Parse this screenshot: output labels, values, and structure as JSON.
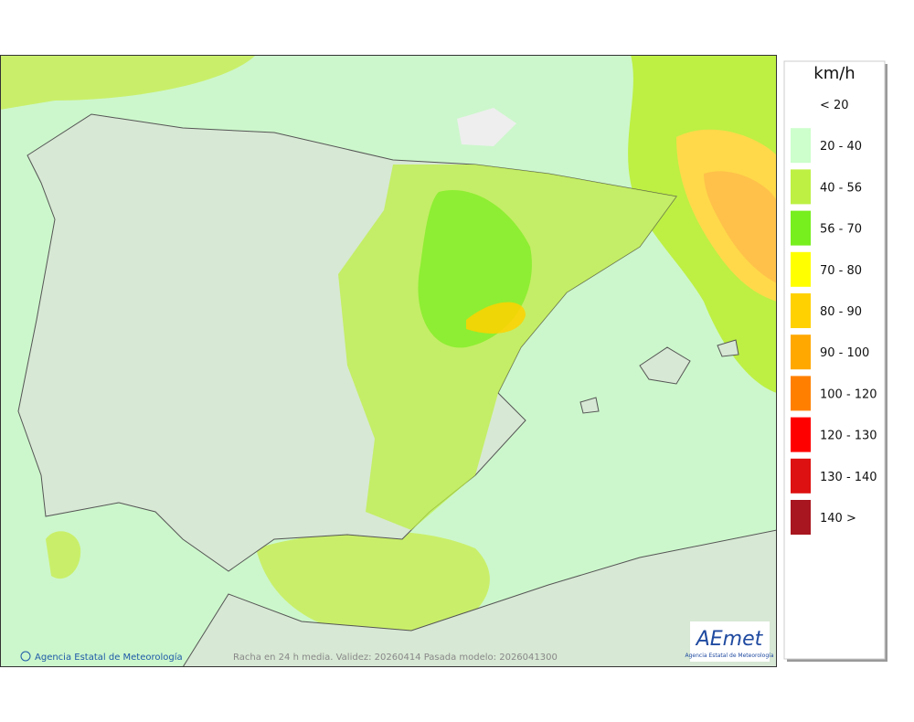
{
  "map": {
    "footer": "Racha en 24 h media. Validez: 20260414 Pasada modelo: 2026041300",
    "credit": "Agencia Estatal de Meteorología",
    "logo": {
      "name": "AEmet",
      "subtitle": "Agencia Estatal de Meteorología"
    },
    "legend": {
      "unit": "km/h",
      "items": [
        {
          "label": "< 20",
          "color": null
        },
        {
          "label": "20 - 40",
          "color": "#ccffcc"
        },
        {
          "label": "40 - 56",
          "color": "#bdf043"
        },
        {
          "label": "56 - 70",
          "color": "#77ee1e"
        },
        {
          "label": "70 - 80",
          "color": "#ffff00"
        },
        {
          "label": "80 - 90",
          "color": "#ffd100"
        },
        {
          "label": "90 - 100",
          "color": "#ffa800"
        },
        {
          "label": "100 - 120",
          "color": "#ff8000"
        },
        {
          "label": "120 - 130",
          "color": "#ff0000"
        },
        {
          "label": "130 - 140",
          "color": "#dd1111"
        },
        {
          "label": "140 >",
          "color": "#a8161f"
        }
      ]
    }
  }
}
